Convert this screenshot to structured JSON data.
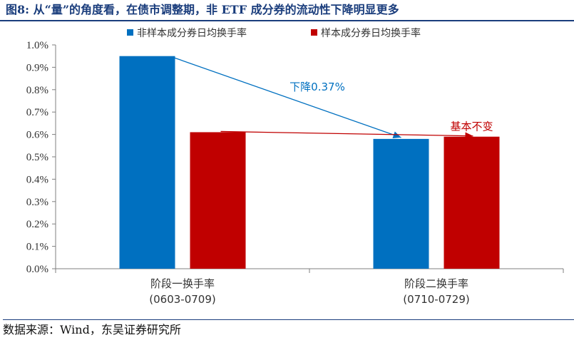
{
  "title": "图8:  从“量”的角度看，在债市调整期，非 ETF 成分券的流动性下降明显更多",
  "source": "数据来源：Wind，东吴证券研究所",
  "colors": {
    "series0": "#0070c0",
    "series1": "#c00000",
    "title": "#1a3d7c"
  },
  "chart_data": {
    "type": "bar",
    "categories": [
      [
        "阶段一换手率",
        "(0603-0709)"
      ],
      [
        "阶段二换手率",
        "(0710-0729)"
      ]
    ],
    "series": [
      {
        "name": "非样本成分券日均换手率",
        "values": [
          0.95,
          0.58
        ]
      },
      {
        "name": "样本成分券日均换手率",
        "values": [
          0.61,
          0.59
        ]
      }
    ],
    "ylim": [
      0,
      1.0
    ],
    "yticks": [
      "0.0%",
      "0.1%",
      "0.2%",
      "0.3%",
      "0.4%",
      "0.5%",
      "0.6%",
      "0.7%",
      "0.8%",
      "0.9%",
      "1.0%"
    ],
    "legend_position": "top",
    "grid": false,
    "annotations": [
      {
        "text": "下降0.37%",
        "series": 0,
        "from": 0,
        "to": 1,
        "color": "#0070c0"
      },
      {
        "text": "基本不变",
        "series": 1,
        "from": 0,
        "to": 1,
        "color": "#c00000"
      }
    ]
  }
}
